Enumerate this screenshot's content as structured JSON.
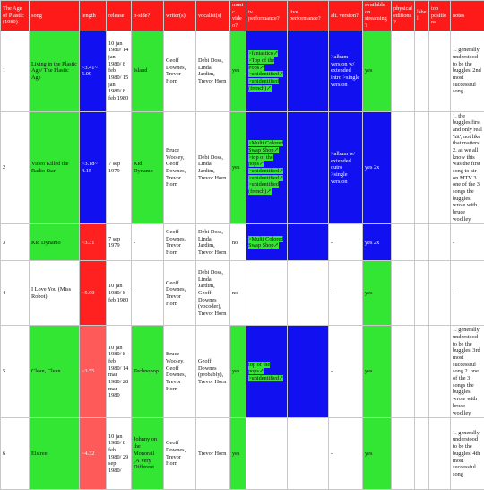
{
  "headers": [
    "The Age of Plastic (1980)",
    "song",
    "length",
    "release",
    "b-side?",
    "writer(s)",
    "vocalist(s)",
    "music video?",
    "tv performance?",
    "live performance?",
    "alt. version?",
    "available on streaming?",
    "physical editions?",
    "label",
    "top positions",
    "notes"
  ],
  "rows": [
    {
      "num": "1",
      "song": "Living in the Plastic Age/ The Plastic Age",
      "length": "~3.41~ 5.09",
      "release": "10 jan 1980/ 14 jan 1980/ 8 feb 1980/ 15 jan 1980/ 8 feb 1980",
      "bside": "Island",
      "writers": "Geoff Downes, Trevor Horn",
      "vocalists": "Debi Doss, Linda Jardim, Trevor Horn",
      "video": "yes",
      "tv": [
        ">fantastico↗",
        ">Top of the Pops↗",
        ">unidentified↗",
        ">unidentified (french)↗"
      ],
      "live": "",
      "alt": ">album version w/ extended intro >single version",
      "streaming": "yes",
      "notes": "1. generally understood to be the buggles' 2nd most successful song"
    },
    {
      "num": "2",
      "song": "Video Killed the Radio Star",
      "length": "~3.18~ 4.15",
      "release": "7 sep 1979",
      "bside": "Kid Dynamo",
      "writers": "Bruce Wooley, Geoff Downes, Trevor Horn",
      "vocalists": "Debi Doss, Linda Jardim, Trevor Horn",
      "video": "yes",
      "tv": [
        ">Multi Colored Swap Shop↗",
        ">top of the pops↗",
        ">unidentified↗",
        ">unidentified↗",
        ">unidentified (french)↗"
      ],
      "live": "",
      "alt": ">album w/ extended outro >single version",
      "streaming": "yes 2x",
      "notes": "1. the buggles first and only real 'hit', not like that matters 2. as we all know this was the first song to air on MTV 3. one of the 3 songs the buggles wrote with bruce woolley"
    },
    {
      "num": "3",
      "song": "Kid Dynamo",
      "length": "~3.31",
      "release": "7 sep 1979",
      "bside": "-",
      "writers": "Geoff Downes, Trevor Horn",
      "vocalists": "Debi Doss, Linda Jardim, Trevor Horn",
      "video": "no",
      "tv": [
        ">Multi Colored Swap Shop↗"
      ],
      "live": "",
      "alt": "-",
      "streaming": "yes 2x",
      "notes": "-"
    },
    {
      "num": "4",
      "song": "I Love You (Miss Robot)",
      "length": "~5.00",
      "release": "10 jan 1980/ 8 feb 1980",
      "bside": "-",
      "writers": "Geoff Downes, Trevor Horn",
      "vocalists": "Debi Doss, Linda Jardim, Geoff Downes (vocoder), Trevor Horn",
      "video": "no",
      "tv": [],
      "live": "",
      "alt": "-",
      "streaming": "yes",
      "notes": "-"
    },
    {
      "num": "5",
      "song": "Clean, Clean",
      "length": "~3.55",
      "release": "10 jan 1980/ 8 feb 1980/ 14 mar 1980/ 28 mar 1980",
      "bside": "Technopop",
      "writers": "Bruce Wooley, Geoff Downes, Trevor Horn",
      "vocalists": "Geoff Downes (probably), Trevor Horn",
      "video": "yes",
      "tv": [
        "top of the pops↗",
        ">unidentified↗"
      ],
      "live": "",
      "alt": "-",
      "streaming": "yes",
      "notes": "1. generally understood to be the buggles' 3rd most successful song 2. one of the 3 songs the buggles wrote with bruce woolley"
    },
    {
      "num": "6",
      "song": "Elstree",
      "length": "~4.32",
      "release": "10 jan 1980/ 8 feb 1980/ 29 sep 1980/",
      "bside": "Johnny on the Monorail (A Very Different",
      "writers": "Geoff Downes, Trevor Horn",
      "vocalists": "Trevor Horn",
      "video": "yes",
      "tv": [],
      "live": "",
      "alt": "-",
      "streaming": "yes",
      "notes": "1. generally understood to be the buggles' 4th most successful song"
    }
  ],
  "colors": {
    "header_bg": "#ff1a1a",
    "green": "#33e633",
    "blue": "#1010f0",
    "red": "#ff2020"
  }
}
